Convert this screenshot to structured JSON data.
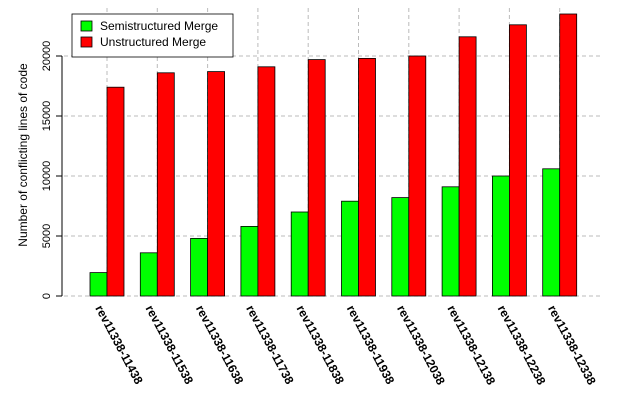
{
  "chart_data": {
    "type": "bar",
    "title": "",
    "xlabel": "",
    "ylabel": "Number of conflicting lines of code",
    "ylim": [
      0,
      23500
    ],
    "yticks": [
      0,
      5000,
      10000,
      15000,
      20000
    ],
    "grid": true,
    "legend_position": "top-left",
    "categories": [
      "rev11338-11438",
      "rev11338-11538",
      "rev11338-11638",
      "rev11338-11738",
      "rev11338-11838",
      "rev11338-11938",
      "rev11338-12038",
      "rev11338-12138",
      "rev11338-12238",
      "rev11338-12338"
    ],
    "series": [
      {
        "name": "Semistructured Merge",
        "color": "#00ff00",
        "values": [
          1950,
          3600,
          4800,
          5800,
          7000,
          7900,
          8200,
          9100,
          10000,
          10600
        ]
      },
      {
        "name": "Unstructured Merge",
        "color": "#ff0000",
        "values": [
          17400,
          18600,
          18700,
          19100,
          19700,
          19800,
          20000,
          21600,
          22600,
          23500
        ]
      }
    ]
  }
}
